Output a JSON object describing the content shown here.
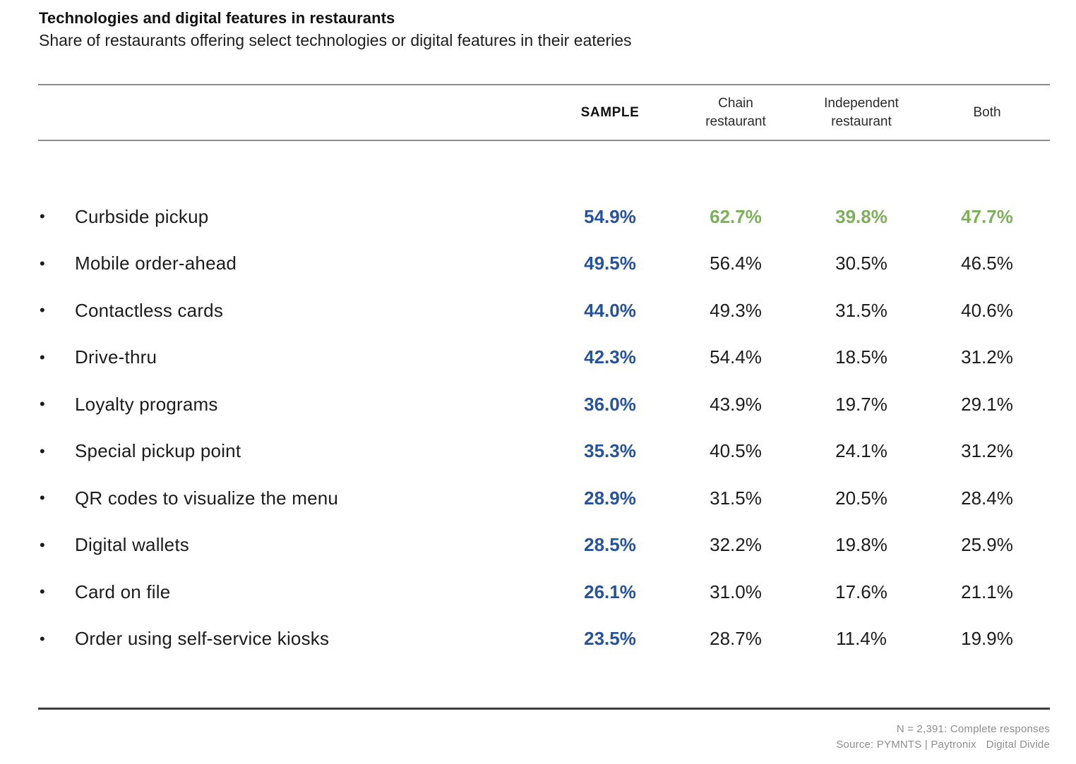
{
  "page": {
    "title": "Technologies and digital features in restaurants",
    "subtitle": "Share of restaurants offering select technologies or digital features in their eateries"
  },
  "table": {
    "col_sample": "SAMPLE",
    "col_chain": "Chain restaurant",
    "col_independent": "Independent restaurant",
    "col_both": "Both",
    "rows": [
      {
        "label": "Curbside pickup",
        "sample": "54.9%",
        "chain": "62.7%",
        "independent": "39.8%",
        "both": "47.7%"
      },
      {
        "label": "Mobile order-ahead",
        "sample": "49.5%",
        "chain": "56.4%",
        "independent": "30.5%",
        "both": "46.5%"
      },
      {
        "label": "Contactless cards",
        "sample": "44.0%",
        "chain": "49.3%",
        "independent": "31.5%",
        "both": "40.6%"
      },
      {
        "label": "Drive-thru",
        "sample": "42.3%",
        "chain": "54.4%",
        "independent": "18.5%",
        "both": "31.2%"
      },
      {
        "label": "Loyalty programs",
        "sample": "36.0%",
        "chain": "43.9%",
        "independent": "19.7%",
        "both": "29.1%"
      },
      {
        "label": "Special pickup point",
        "sample": "35.3%",
        "chain": "40.5%",
        "independent": "24.1%",
        "both": "31.2%"
      },
      {
        "label": "QR codes to visualize the menu",
        "sample": "28.9%",
        "chain": "31.5%",
        "independent": "20.5%",
        "both": "28.4%"
      },
      {
        "label": "Digital wallets",
        "sample": "28.5%",
        "chain": "32.2%",
        "independent": "19.8%",
        "both": "25.9%"
      },
      {
        "label": "Card on file",
        "sample": "26.1%",
        "chain": "31.0%",
        "independent": "17.6%",
        "both": "21.1%"
      },
      {
        "label": "Order using self-service kiosks",
        "sample": "23.5%",
        "chain": "28.7%",
        "independent": "11.4%",
        "both": "19.9%"
      }
    ]
  },
  "footer": {
    "n_note": "N = 2,391: Complete responses",
    "source": "Source: PYMNTS | Paytronix",
    "report": "Digital Divide"
  },
  "colors": {
    "sample_blue": "#27539B",
    "highlight_green": "#7EB05B",
    "text_dark": "#1C1C1C",
    "header_line_gray": "#8C8C8C",
    "bottom_line_dark": "#3D3D3D",
    "footer_gray": "#8E8E8E"
  },
  "chart_data": {
    "type": "table",
    "title": "Technologies and digital features in restaurants",
    "subtitle": "Share of restaurants offering select technologies or digital features in their eateries",
    "columns": [
      "SAMPLE",
      "Chain restaurant",
      "Independent restaurant",
      "Both"
    ],
    "categories": [
      "Curbside pickup",
      "Mobile order-ahead",
      "Contactless cards",
      "Drive-thru",
      "Loyalty programs",
      "Special pickup point",
      "QR codes to visualize the menu",
      "Digital wallets",
      "Card on file",
      "Order using self-service kiosks"
    ],
    "series": [
      {
        "name": "SAMPLE",
        "values": [
          54.9,
          49.5,
          44.0,
          42.3,
          36.0,
          35.3,
          28.9,
          28.5,
          26.1,
          23.5
        ]
      },
      {
        "name": "Chain restaurant",
        "values": [
          62.7,
          56.4,
          49.3,
          54.4,
          43.9,
          40.5,
          31.5,
          32.2,
          31.0,
          28.7
        ]
      },
      {
        "name": "Independent restaurant",
        "values": [
          39.8,
          30.5,
          31.5,
          18.5,
          19.7,
          24.1,
          20.5,
          19.8,
          17.6,
          11.4
        ]
      },
      {
        "name": "Both",
        "values": [
          47.7,
          46.5,
          40.6,
          31.2,
          29.1,
          31.2,
          28.4,
          25.9,
          21.1,
          19.9
        ]
      }
    ],
    "unit": "%",
    "highlighted_row": "Curbside pickup",
    "notes": [
      "N = 2,391: Complete responses",
      "Source: PYMNTS | Paytronix  Digital Divide"
    ]
  }
}
